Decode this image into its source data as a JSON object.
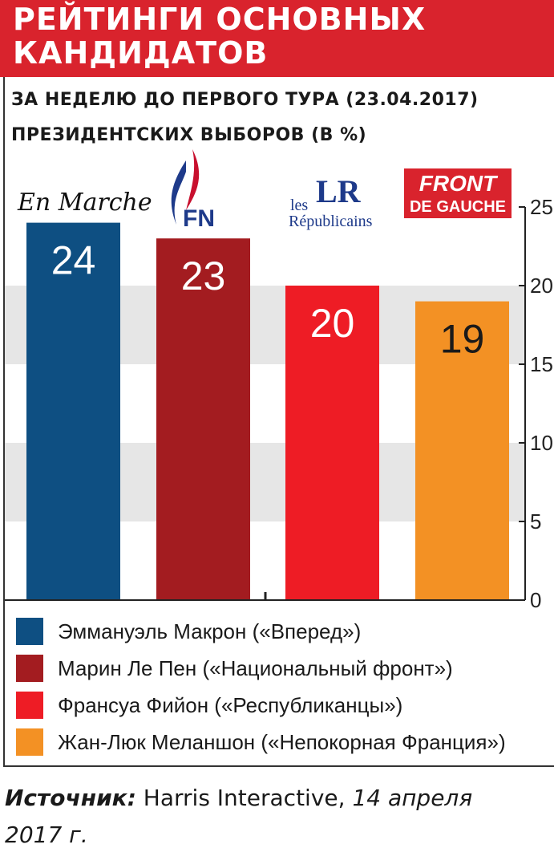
{
  "title": {
    "line1": "РЕЙТИНГИ ОСНОВНЫХ",
    "line2": "КАНДИДАТОВ"
  },
  "subtitle": {
    "line1": "ЗА НЕДЕЛЮ ДО ПЕРВОГО ТУРА (23.04.2017)",
    "line2": "ПРЕЗИДЕНТСКИХ ВЫБОРОВ (В %)"
  },
  "logos": {
    "en_marche": "En Marche",
    "fn": "FN",
    "lr_small": "les",
    "lr_big": "LR",
    "lr_name": "Républicains",
    "fdg_top": "FRONT",
    "fdg_bottom": "DE GAUCHE"
  },
  "colors": {
    "macron": "#0e4f82",
    "lepen": "#a31c20",
    "fillon": "#ee1c25",
    "melenchon": "#f39124",
    "band": "#e6e6e6",
    "title_bg": "#d9232d"
  },
  "chart_data": {
    "type": "bar",
    "categories": [
      "Эммануэль Макрон («Вперед»)",
      "Марин Ле Пен («Национальный фронт»)",
      "Франсуа Фийон («Республиканцы»)",
      "Жан-Люк Меланшон («Непокорная Франция»)"
    ],
    "values": [
      24,
      23,
      20,
      19
    ],
    "ylim": [
      0,
      25
    ],
    "y_ticks": [
      0,
      5,
      10,
      15,
      20,
      25
    ],
    "y_tick_labels": [
      "0",
      "5",
      "10",
      "15",
      "20",
      "25"
    ],
    "grid": "alternating bands",
    "legend": "bottom"
  },
  "source": {
    "label": "Источник:",
    "text": " Harris Interactive, ",
    "date": "14 апреля",
    "cutoff": "2017 г."
  }
}
